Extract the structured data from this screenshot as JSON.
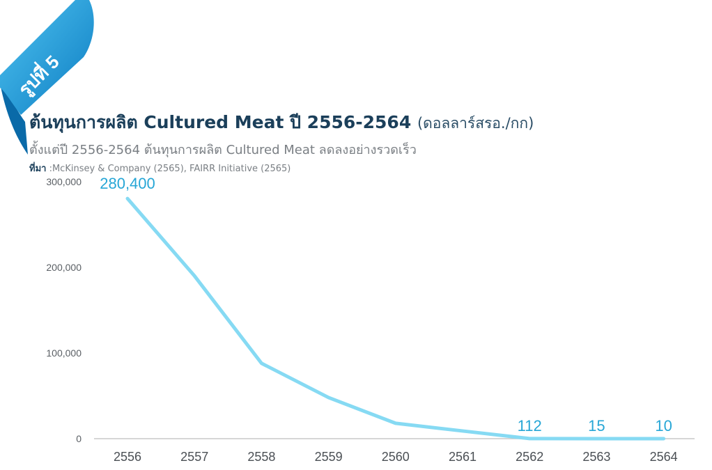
{
  "badge": {
    "label": "รูปที่ 5"
  },
  "header": {
    "title": "ต้นทุนการผลิต Cultured Meat ปี 2556-2564",
    "unit": "(ดอลลาร์สรอ./กก)",
    "subtitle": "ตั้งแต่ปี 2556-2564 ต้นทุนการผลิต Cultured Meat ลดลงอย่างรวดเร็ว",
    "source_label": "ที่มา",
    "source_text": " :McKinsey & Company (2565), FAIRR Initiative (2565)"
  },
  "colors": {
    "line": "#86daf3",
    "accent": "#26a6d6",
    "ribbon": "#1a9ad6",
    "axis": "#c9c9c9"
  },
  "chart_data": {
    "type": "line",
    "title": "ต้นทุนการผลิต Cultured Meat ปี 2556-2564",
    "xlabel": "",
    "ylabel": "",
    "categories": [
      "2556",
      "2557",
      "2558",
      "2559",
      "2560",
      "2561",
      "2562",
      "2563",
      "2564"
    ],
    "series": [
      {
        "values": [
          280400,
          190000,
          88000,
          48000,
          18000,
          9000,
          112,
          15,
          10
        ]
      }
    ],
    "ylim": [
      0,
      300000
    ],
    "yticks": [
      0,
      100000,
      200000,
      300000
    ],
    "ytick_labels": [
      "0",
      "100,000",
      "200,000",
      "300,000"
    ],
    "data_labels": [
      {
        "index": 0,
        "text": "280,400"
      },
      {
        "index": 6,
        "text": "112"
      },
      {
        "index": 7,
        "text": "15"
      },
      {
        "index": 8,
        "text": "10"
      }
    ],
    "grid": false,
    "legend": "none"
  }
}
